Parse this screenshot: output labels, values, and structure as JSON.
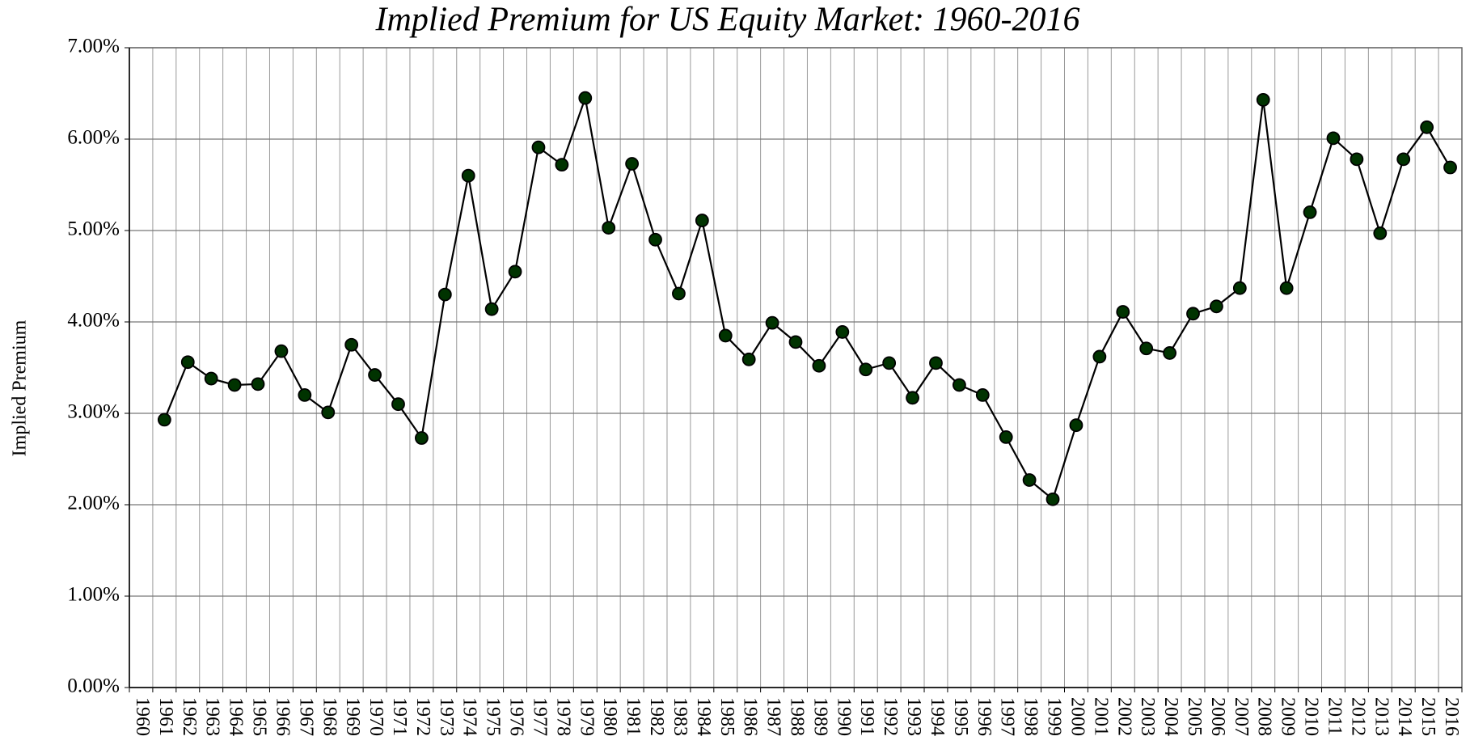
{
  "chart_data": {
    "type": "line",
    "title": "Implied Premium for US Equity Market: 1960-2016",
    "y_label": "Implied Premium",
    "categories": [
      "1960",
      "1961",
      "1962",
      "1963",
      "1964",
      "1965",
      "1966",
      "1967",
      "1968",
      "1969",
      "1970",
      "1971",
      "1972",
      "1973",
      "1974",
      "1975",
      "1976",
      "1977",
      "1978",
      "1979",
      "1980",
      "1981",
      "1982",
      "1983",
      "1984",
      "1985",
      "1986",
      "1987",
      "1988",
      "1989",
      "1990",
      "1991",
      "1992",
      "1993",
      "1994",
      "1995",
      "1996",
      "1997",
      "1998",
      "1999",
      "2000",
      "2001",
      "2002",
      "2003",
      "2004",
      "2005",
      "2006",
      "2007",
      "2008",
      "2009",
      "2010",
      "2011",
      "2012",
      "2013",
      "2014",
      "2015",
      "2016"
    ],
    "values": [
      null,
      2.93,
      3.56,
      3.38,
      3.31,
      3.32,
      3.68,
      3.2,
      3.01,
      3.75,
      3.42,
      3.1,
      2.73,
      4.3,
      5.6,
      4.14,
      4.55,
      5.91,
      5.72,
      6.45,
      5.03,
      5.73,
      4.9,
      4.31,
      5.11,
      3.85,
      3.59,
      3.99,
      3.78,
      3.52,
      3.89,
      3.48,
      3.55,
      3.17,
      3.55,
      3.31,
      3.2,
      2.74,
      2.27,
      2.06,
      2.87,
      3.62,
      4.11,
      3.71,
      3.66,
      4.09,
      4.17,
      4.37,
      6.43,
      4.37,
      5.2,
      6.01,
      5.78,
      4.97,
      5.78,
      6.13,
      5.69
    ],
    "color": "#003300",
    "line_color": "#000000",
    "ylim": [
      0,
      7
    ],
    "yticks": [
      {
        "value": 0,
        "label": "0.00%"
      },
      {
        "value": 1,
        "label": "1.00%"
      },
      {
        "value": 2,
        "label": "2.00%"
      },
      {
        "value": 3,
        "label": "3.00%"
      },
      {
        "value": 4,
        "label": "4.00%"
      },
      {
        "value": 5,
        "label": "5.00%"
      },
      {
        "value": 6,
        "label": "6.00%"
      },
      {
        "value": 7,
        "label": "7.00%"
      }
    ],
    "grid": true
  }
}
